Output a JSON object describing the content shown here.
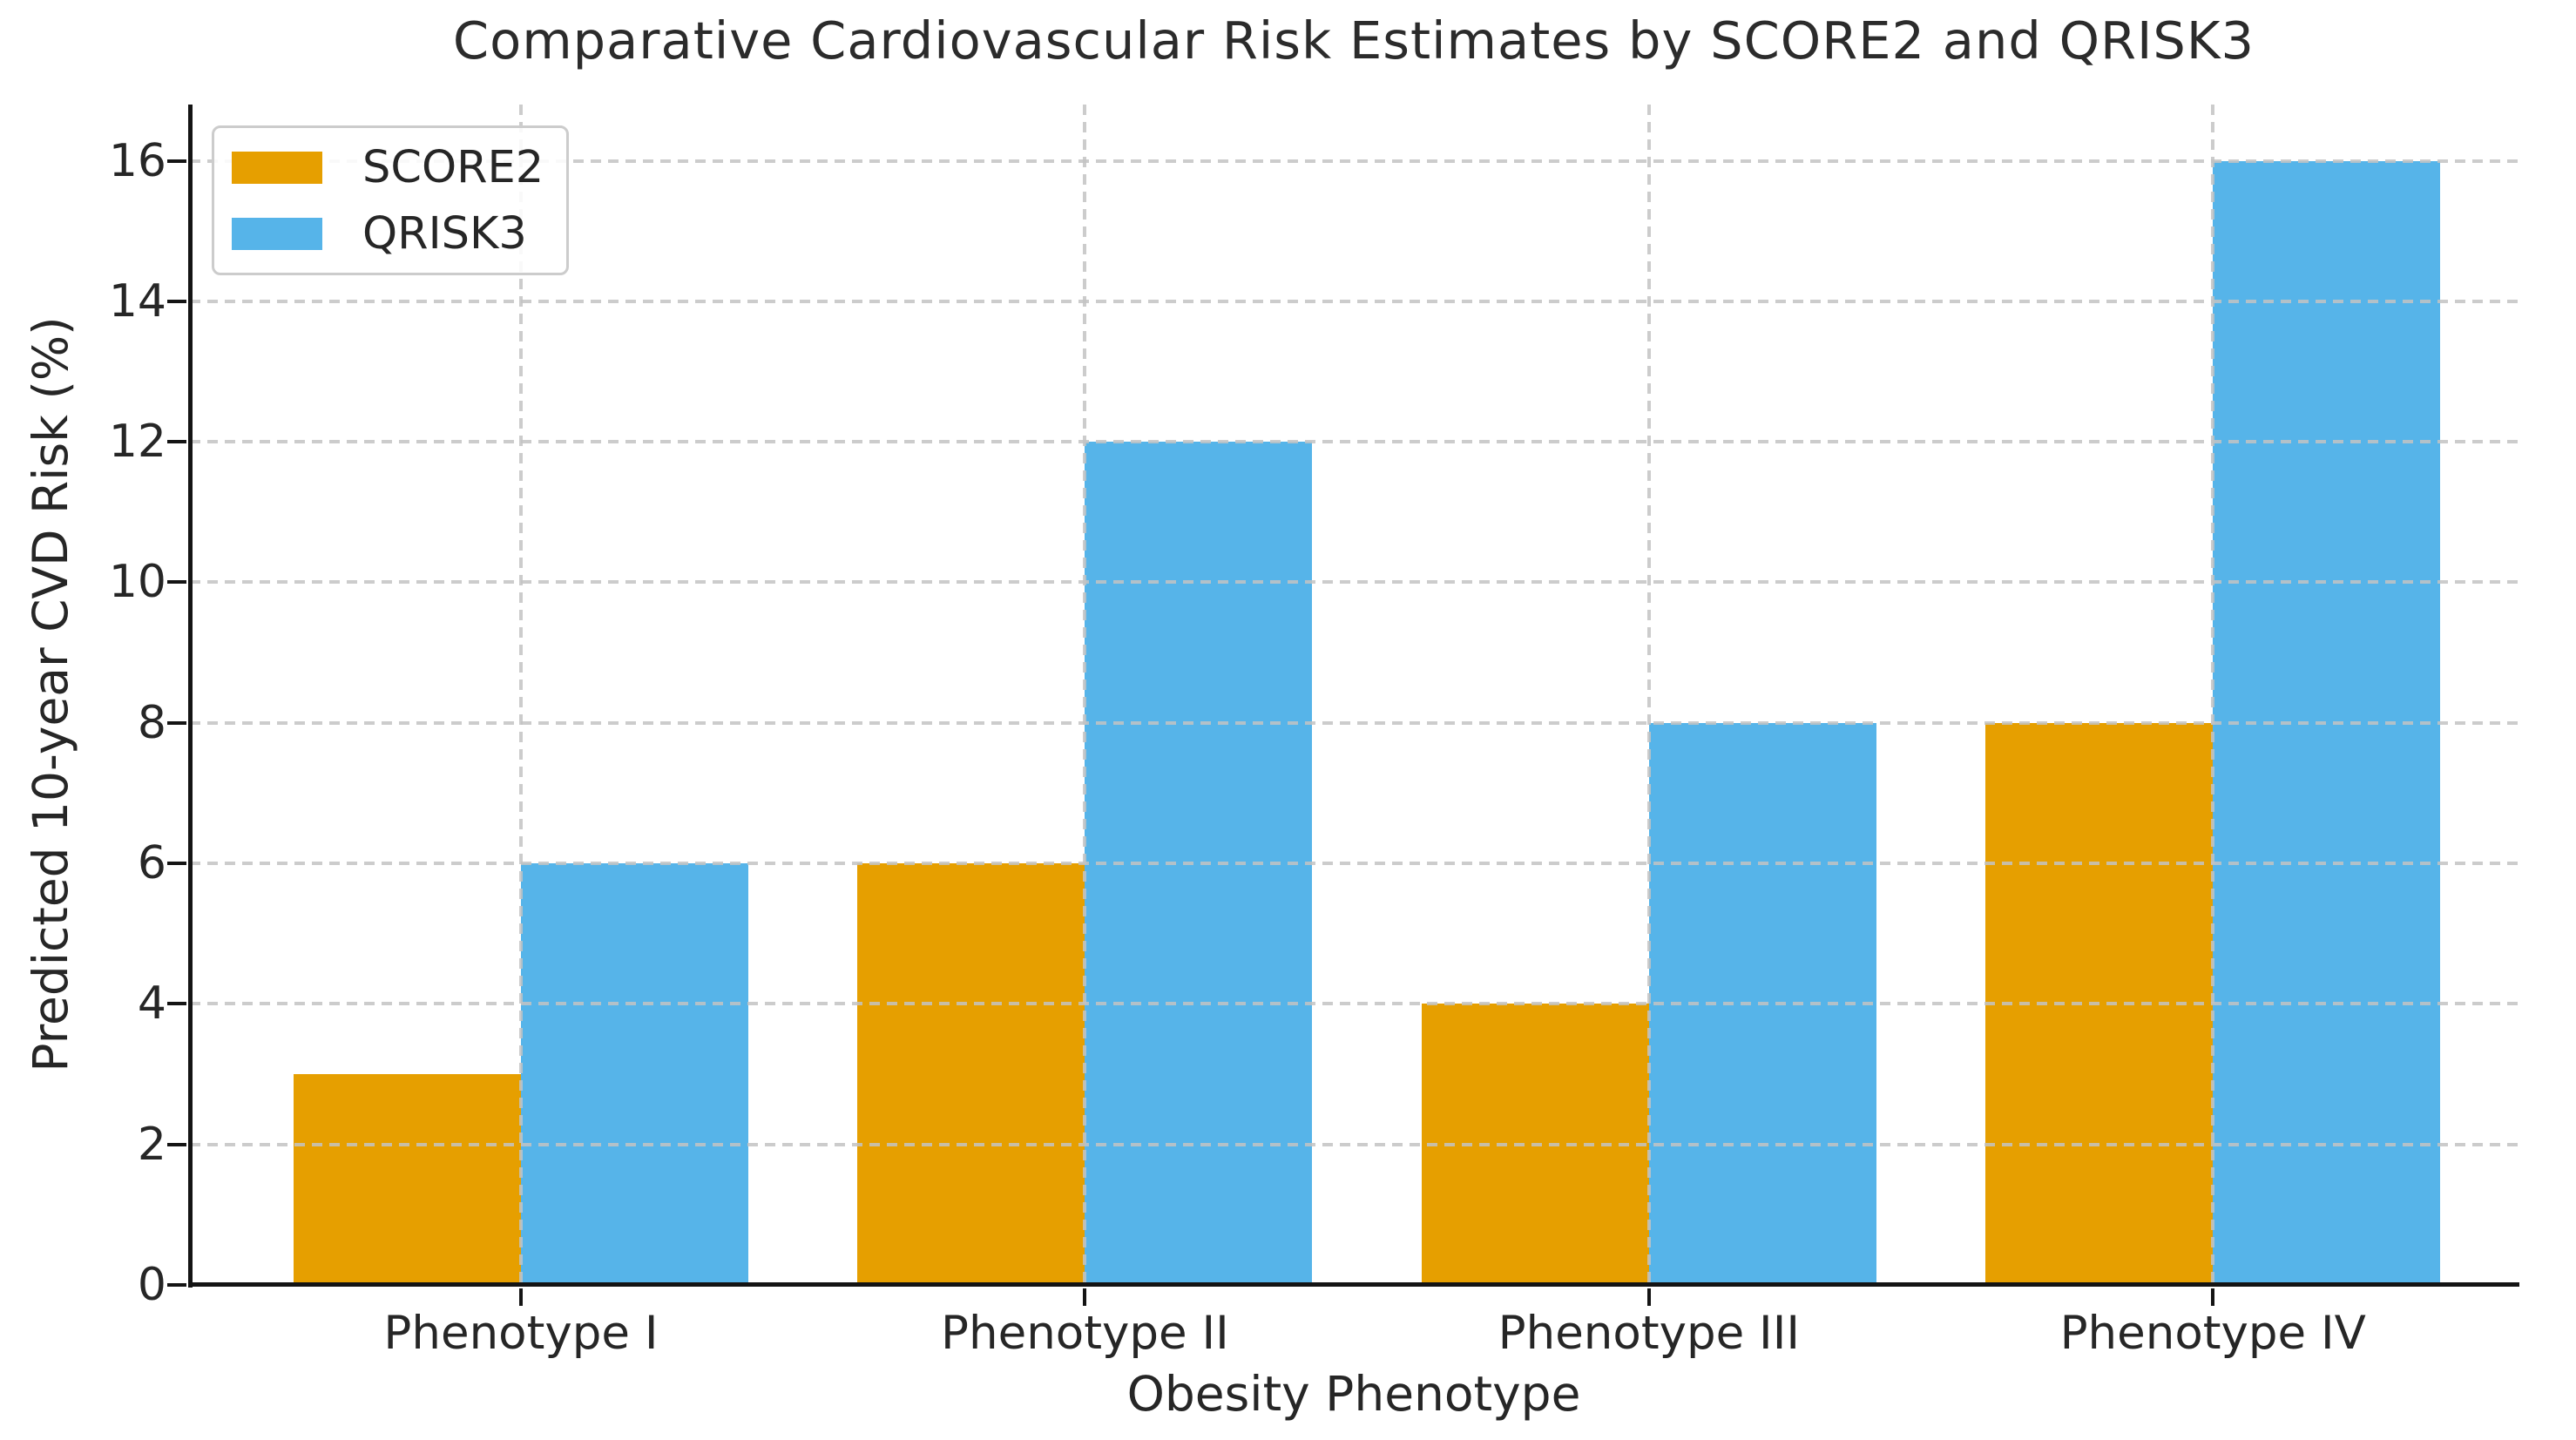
{
  "chart_data": {
    "type": "bar",
    "title": "Comparative Cardiovascular Risk Estimates by SCORE2 and QRISK3",
    "xlabel": "Obesity Phenotype",
    "ylabel": "Predicted 10-year CVD Risk (%)",
    "categories": [
      "Phenotype I",
      "Phenotype II",
      "Phenotype III",
      "Phenotype IV"
    ],
    "series": [
      {
        "name": "SCORE2",
        "color": "#E69F00",
        "values": [
          3,
          6,
          4,
          8
        ]
      },
      {
        "name": "QRISK3",
        "color": "#56B4E9",
        "values": [
          6,
          12,
          8,
          16
        ]
      }
    ],
    "ylim": [
      0,
      16.8
    ],
    "yticks": [
      0,
      2,
      4,
      6,
      8,
      10,
      12,
      14,
      16
    ],
    "grid": "dashed gridlines on both axes, drawn above bars",
    "legend_position": "upper left"
  },
  "colors": {
    "grid": "#c3c3c3",
    "spine": "#141414",
    "text": "#262626",
    "legend_border": "#cccccc",
    "background": "#ffffff"
  }
}
